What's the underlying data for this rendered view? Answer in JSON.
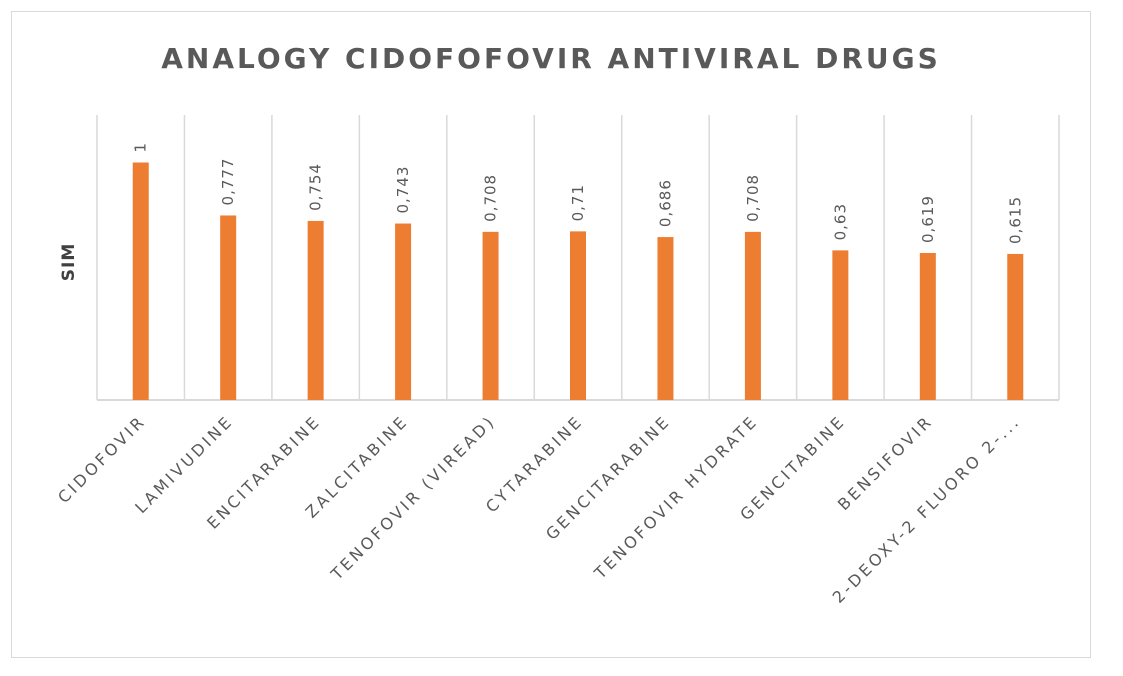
{
  "chart_data": {
    "type": "bar",
    "title": "ANALOGY CIDOFOFOVIR ANTIVIRAL DRUGS",
    "xlabel": "",
    "ylabel": "SIM",
    "categories": [
      "CIDOFOVIR",
      "LAMIVUDINE",
      "ENCITARABINE",
      "ZALCITABINE",
      "TENOFOVIR (VIREAD)",
      "CYTARABINE",
      "GENCITARABINE",
      "TENOFOVIR HYDRATE",
      "GENCITABINE",
      "BENSIFOVIR",
      "2-DEOXY-2 FLUORO 2-..."
    ],
    "values": [
      1,
      0.777,
      0.754,
      0.743,
      0.708,
      0.71,
      0.686,
      0.708,
      0.63,
      0.619,
      0.615
    ],
    "data_labels": [
      "1",
      "0,777",
      "0,754",
      "0,743",
      "0,708",
      "0,71",
      "0,686",
      "0,708",
      "0,63",
      "0,619",
      "0,615"
    ],
    "ylim": [
      0,
      1.2
    ],
    "grid": "vertical",
    "legend": "none",
    "bar_color": "#ED7D31",
    "grid_color": "#d9d9d9"
  }
}
